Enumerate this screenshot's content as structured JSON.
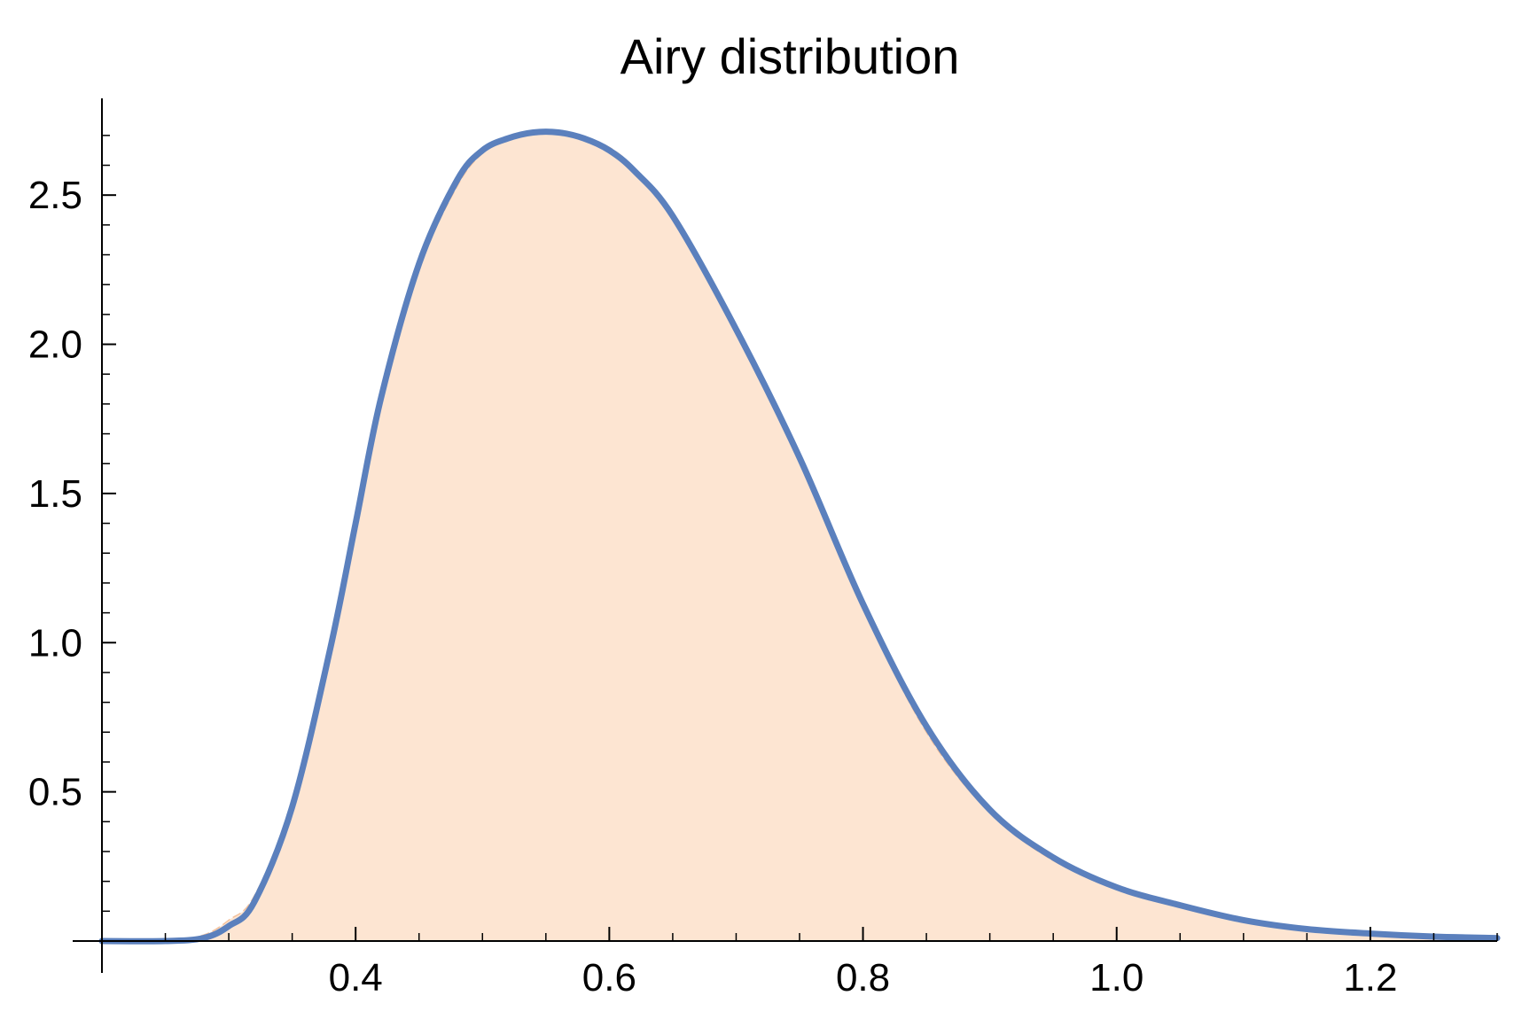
{
  "chart_data": {
    "type": "area",
    "title": "Airy distribution",
    "xlabel": "",
    "ylabel": "",
    "xlim": [
      0.2,
      1.3
    ],
    "ylim": [
      0,
      2.75
    ],
    "x_ticks": [
      {
        "value": 0.4,
        "label": "0.4"
      },
      {
        "value": 0.6,
        "label": "0.6"
      },
      {
        "value": 0.8,
        "label": "0.8"
      },
      {
        "value": 1.0,
        "label": "1.0"
      },
      {
        "value": 1.2,
        "label": "1.2"
      }
    ],
    "x_minor_step": 0.05,
    "y_ticks": [
      {
        "value": 0.5,
        "label": "0.5"
      },
      {
        "value": 1.0,
        "label": "1.0"
      },
      {
        "value": 1.5,
        "label": "1.5"
      },
      {
        "value": 2.0,
        "label": "2.0"
      },
      {
        "value": 2.5,
        "label": "2.5"
      }
    ],
    "y_minor_step": 0.1,
    "grid": false,
    "colors": {
      "curve": "#5b80bd",
      "fill": "#fde5d2",
      "fill_edge": "#f0b58a",
      "axis": "#000000"
    },
    "series": [
      {
        "style": "line",
        "x": [
          0.2,
          0.25,
          0.28,
          0.3,
          0.32,
          0.35,
          0.38,
          0.4,
          0.42,
          0.45,
          0.48,
          0.5,
          0.52,
          0.54,
          0.56,
          0.58,
          0.6,
          0.62,
          0.65,
          0.7,
          0.75,
          0.8,
          0.85,
          0.9,
          0.95,
          1.0,
          1.05,
          1.1,
          1.15,
          1.2,
          1.25,
          1.3
        ],
        "y": [
          0.0,
          0.0,
          0.01,
          0.05,
          0.13,
          0.45,
          0.98,
          1.4,
          1.82,
          2.27,
          2.55,
          2.65,
          2.69,
          2.71,
          2.71,
          2.69,
          2.65,
          2.58,
          2.43,
          2.05,
          1.62,
          1.13,
          0.72,
          0.44,
          0.28,
          0.18,
          0.12,
          0.07,
          0.04,
          0.025,
          0.015,
          0.01
        ]
      },
      {
        "style": "filled-area",
        "x": [
          0.2,
          0.25,
          0.28,
          0.3,
          0.32,
          0.35,
          0.38,
          0.4,
          0.42,
          0.45,
          0.48,
          0.5,
          0.52,
          0.54,
          0.56,
          0.58,
          0.6,
          0.62,
          0.65,
          0.7,
          0.75,
          0.8,
          0.85,
          0.9,
          0.95,
          1.0,
          1.05,
          1.1,
          1.15,
          1.2,
          1.25,
          1.3
        ],
        "y": [
          0.0,
          0.0,
          0.02,
          0.07,
          0.15,
          0.46,
          0.97,
          1.37,
          1.79,
          2.25,
          2.53,
          2.64,
          2.69,
          2.71,
          2.71,
          2.69,
          2.66,
          2.59,
          2.44,
          2.06,
          1.62,
          1.12,
          0.7,
          0.43,
          0.27,
          0.18,
          0.12,
          0.075,
          0.045,
          0.028,
          0.017,
          0.01
        ]
      }
    ]
  }
}
